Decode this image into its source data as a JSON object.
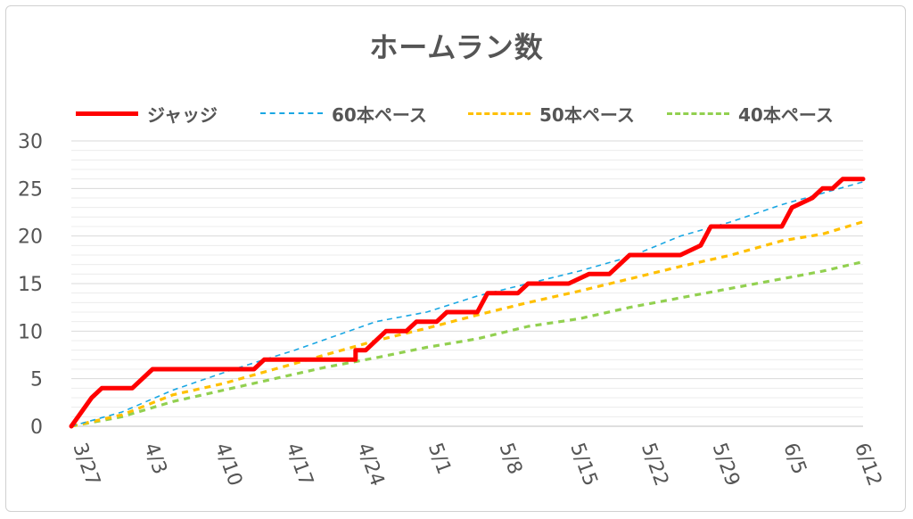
{
  "chart_data": {
    "type": "line",
    "title": "ホームラン数",
    "xlabel": "",
    "ylabel": "",
    "ylim": [
      0,
      30
    ],
    "yticks": [
      0,
      5,
      10,
      15,
      20,
      25,
      30
    ],
    "x_range_days": [
      0,
      78
    ],
    "x_ticks": [
      {
        "label": "3/27",
        "day": 0
      },
      {
        "label": "4/3",
        "day": 7
      },
      {
        "label": "4/10",
        "day": 14
      },
      {
        "label": "4/17",
        "day": 21
      },
      {
        "label": "4/24",
        "day": 28
      },
      {
        "label": "5/1",
        "day": 35
      },
      {
        "label": "5/8",
        "day": 42
      },
      {
        "label": "5/15",
        "day": 49
      },
      {
        "label": "5/22",
        "day": 56
      },
      {
        "label": "5/29",
        "day": 63
      },
      {
        "label": "6/5",
        "day": 70
      },
      {
        "label": "6/12",
        "day": 77
      }
    ],
    "legend_position": "top",
    "series": [
      {
        "name": "ジャッジ",
        "style": "solid",
        "color": "#ff0000",
        "points": [
          [
            0,
            0
          ],
          [
            2,
            3
          ],
          [
            3,
            4
          ],
          [
            6,
            4
          ],
          [
            8,
            6
          ],
          [
            18,
            6
          ],
          [
            19,
            7
          ],
          [
            25,
            7
          ],
          [
            28,
            7
          ],
          [
            28,
            8
          ],
          [
            29,
            8
          ],
          [
            31,
            10
          ],
          [
            33,
            10
          ],
          [
            34,
            11
          ],
          [
            36,
            11
          ],
          [
            37,
            12
          ],
          [
            40,
            12
          ],
          [
            41,
            14
          ],
          [
            44,
            14
          ],
          [
            45,
            15
          ],
          [
            49,
            15
          ],
          [
            51,
            16
          ],
          [
            53,
            16
          ],
          [
            55,
            18
          ],
          [
            60,
            18
          ],
          [
            62,
            19
          ],
          [
            63,
            21
          ],
          [
            70,
            21
          ],
          [
            71,
            23
          ],
          [
            73,
            24
          ],
          [
            74,
            25
          ],
          [
            75,
            25
          ],
          [
            76,
            26
          ],
          [
            78,
            26
          ]
        ]
      },
      {
        "name": "60本ペース",
        "style": "dashed",
        "color": "#1aa7e3",
        "points": [
          [
            0,
            0
          ],
          [
            5,
            1.5
          ],
          [
            10,
            3.8
          ],
          [
            16,
            6
          ],
          [
            22,
            8
          ],
          [
            26,
            9.5
          ],
          [
            30,
            11
          ],
          [
            35,
            12
          ],
          [
            40,
            13.7
          ],
          [
            45,
            15
          ],
          [
            50,
            16.3
          ],
          [
            55,
            17.8
          ],
          [
            60,
            20
          ],
          [
            65,
            21.5
          ],
          [
            70,
            23.3
          ],
          [
            74,
            24.5
          ],
          [
            78,
            25.7
          ]
        ]
      },
      {
        "name": "50本ペース",
        "style": "dashed",
        "color": "#ffc000",
        "points": [
          [
            0,
            0
          ],
          [
            5,
            1.2
          ],
          [
            10,
            3.3
          ],
          [
            15,
            4.5
          ],
          [
            20,
            6
          ],
          [
            25,
            7.5
          ],
          [
            30,
            9
          ],
          [
            35,
            10.3
          ],
          [
            40,
            11.7
          ],
          [
            45,
            13
          ],
          [
            50,
            14.2
          ],
          [
            55,
            15.5
          ],
          [
            60,
            16.8
          ],
          [
            65,
            18
          ],
          [
            70,
            19.5
          ],
          [
            74,
            20.2
          ],
          [
            78,
            21.5
          ]
        ]
      },
      {
        "name": "40本ペース",
        "style": "dashed",
        "color": "#92d050",
        "points": [
          [
            0,
            0
          ],
          [
            5,
            1
          ],
          [
            10,
            2.6
          ],
          [
            15,
            3.8
          ],
          [
            20,
            5
          ],
          [
            25,
            6.2
          ],
          [
            30,
            7.2
          ],
          [
            35,
            8.3
          ],
          [
            40,
            9.2
          ],
          [
            45,
            10.5
          ],
          [
            50,
            11.3
          ],
          [
            55,
            12.5
          ],
          [
            60,
            13.5
          ],
          [
            65,
            14.5
          ],
          [
            70,
            15.5
          ],
          [
            74,
            16.3
          ],
          [
            78,
            17.3
          ]
        ]
      }
    ]
  }
}
